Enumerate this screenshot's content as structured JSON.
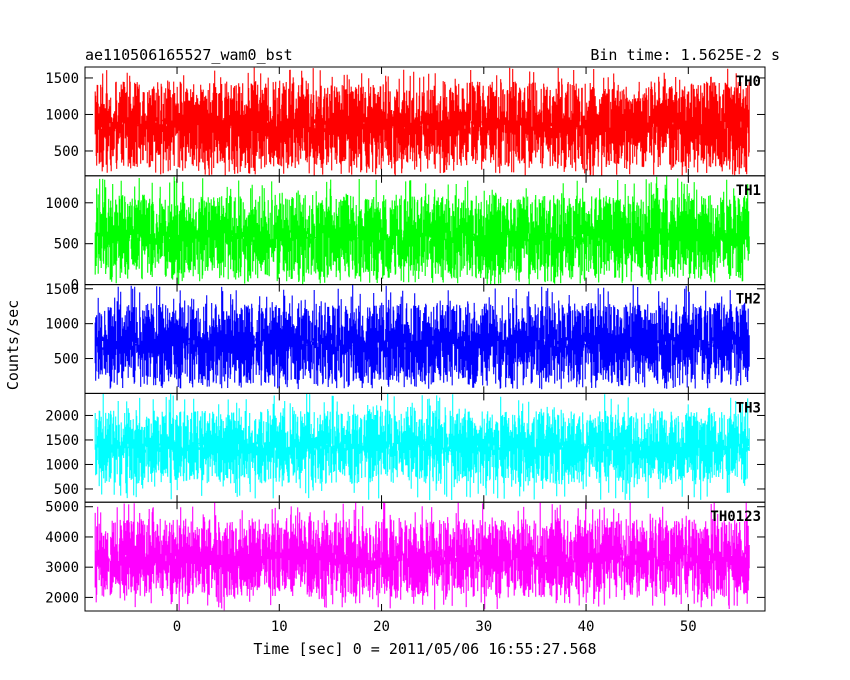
{
  "header": {
    "title": "ae110506165527_wam0_bst",
    "bin_time": "Bin time: 1.5625E-2 s"
  },
  "chart_data": {
    "type": "line",
    "title": "ae110506165527_wam0_bst",
    "subtitle": "Bin time: 1.5625E-2 s",
    "xlabel": "Time [sec] 0 = 2011/05/06 16:55:27.568",
    "ylabel": "Counts/sec",
    "xlim": [
      -9,
      57.5
    ],
    "data_x_range": [
      -8,
      56
    ],
    "x_ticks": [
      0,
      10,
      20,
      30,
      40,
      50
    ],
    "bin_time_s": 0.015625,
    "grid": false,
    "panels": [
      {
        "name": "TH0",
        "color": "#ff0000",
        "ylim": [
          160,
          1650
        ],
        "y_ticks": [
          500,
          1000,
          1500
        ],
        "typical_range": [
          260,
          1450
        ],
        "min": 160,
        "max": 1650,
        "mean": 800
      },
      {
        "name": "TH1",
        "color": "#00ff00",
        "ylim": [
          0,
          1330
        ],
        "y_ticks": [
          0,
          500,
          1000
        ],
        "typical_range": [
          70,
          1100
        ],
        "min": 0,
        "max": 1330,
        "mean": 560
      },
      {
        "name": "TH2",
        "color": "#0000ff",
        "ylim": [
          0,
          1560
        ],
        "y_ticks": [
          500,
          1000,
          1500
        ],
        "typical_range": [
          130,
          1300
        ],
        "min": 60,
        "max": 1560,
        "mean": 700
      },
      {
        "name": "TH3",
        "color": "#00ffff",
        "ylim": [
          230,
          2450
        ],
        "y_ticks": [
          500,
          1000,
          1500,
          2000
        ],
        "typical_range": [
          600,
          2100
        ],
        "min": 270,
        "max": 2450,
        "mean": 1350
      },
      {
        "name": "TH0123",
        "color": "#ff00ff",
        "ylim": [
          1550,
          5150
        ],
        "y_ticks": [
          2000,
          3000,
          4000,
          5000
        ],
        "typical_range": [
          2000,
          4600
        ],
        "min": 1550,
        "max": 5150,
        "mean": 3200
      }
    ]
  }
}
